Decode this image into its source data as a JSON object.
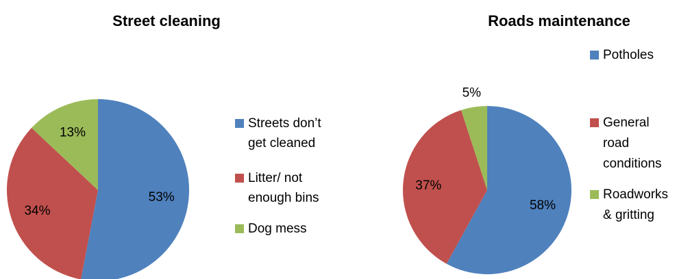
{
  "chart_data": [
    {
      "type": "pie",
      "title": "Street cleaning",
      "legend_position": "right",
      "categories": [
        "Streets don’t get cleaned",
        "Litter/ not enough bins",
        "Dog mess"
      ],
      "values": [
        53,
        34,
        13
      ],
      "value_labels": [
        "53%",
        "34%",
        "13%"
      ],
      "colors": [
        "#4F81BD",
        "#C0504D",
        "#9BBB59"
      ],
      "legend": [
        {
          "lines": [
            "Streets don’t",
            "get cleaned"
          ]
        },
        {
          "lines": [
            "Litter/ not",
            "enough bins"
          ]
        },
        {
          "lines": [
            "Dog mess"
          ]
        }
      ]
    },
    {
      "type": "pie",
      "title": "Roads maintenance",
      "legend_position": "right",
      "categories": [
        "Potholes",
        "General road conditions",
        "Roadworks & gritting"
      ],
      "values": [
        58,
        37,
        5
      ],
      "value_labels": [
        "58%",
        "37%",
        "5%"
      ],
      "colors": [
        "#4F81BD",
        "#C0504D",
        "#9BBB59"
      ],
      "legend": [
        {
          "lines": [
            "Potholes"
          ]
        },
        {
          "lines": [
            "General",
            "road",
            "conditions"
          ]
        },
        {
          "lines": [
            "Roadworks",
            "& gritting"
          ]
        }
      ]
    }
  ]
}
